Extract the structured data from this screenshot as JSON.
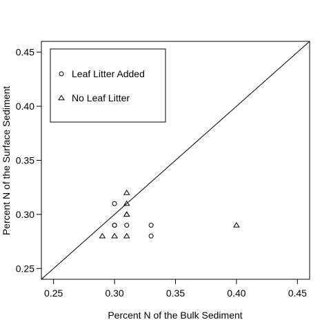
{
  "chart_data": {
    "type": "scatter",
    "title": "",
    "xlabel": "Percent N of the Bulk Sediment",
    "ylabel": "Percent N of the Surface Sediment",
    "xlim": [
      0.24,
      0.46
    ],
    "ylim": [
      0.24,
      0.46
    ],
    "x_ticks": [
      "0.25",
      "0.30",
      "0.35",
      "0.40",
      "0.45"
    ],
    "y_ticks": [
      "0.25",
      "0.30",
      "0.35",
      "0.40",
      "0.45"
    ],
    "grid": false,
    "legend_position": "top-left",
    "reference_line": "y = x",
    "series": [
      {
        "name": "Leaf Litter Added",
        "marker": "circle",
        "points": [
          {
            "x": 0.3,
            "y": 0.31
          },
          {
            "x": 0.3,
            "y": 0.29
          },
          {
            "x": 0.3,
            "y": 0.29
          },
          {
            "x": 0.31,
            "y": 0.29
          },
          {
            "x": 0.33,
            "y": 0.29
          },
          {
            "x": 0.33,
            "y": 0.28
          }
        ]
      },
      {
        "name": "No Leaf Litter",
        "marker": "triangle",
        "points": [
          {
            "x": 0.31,
            "y": 0.32
          },
          {
            "x": 0.31,
            "y": 0.31
          },
          {
            "x": 0.31,
            "y": 0.3
          },
          {
            "x": 0.31,
            "y": 0.3
          },
          {
            "x": 0.29,
            "y": 0.28
          },
          {
            "x": 0.3,
            "y": 0.28
          },
          {
            "x": 0.31,
            "y": 0.28
          },
          {
            "x": 0.4,
            "y": 0.29
          }
        ]
      }
    ]
  },
  "colors": {
    "axis": "#000000",
    "background": "#ffffff"
  }
}
